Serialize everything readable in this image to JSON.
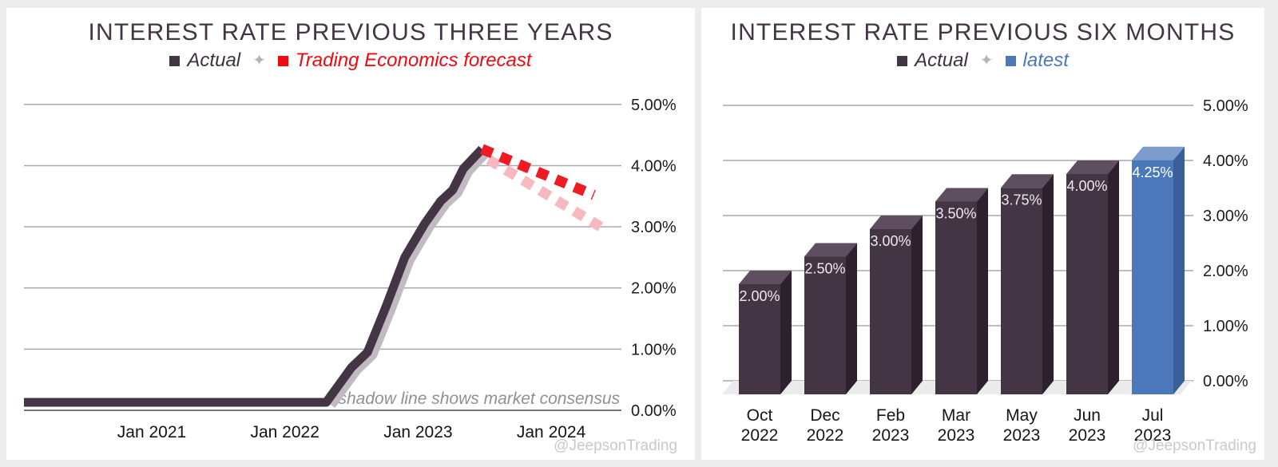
{
  "page": {
    "background_color": "#ededed"
  },
  "left_chart": {
    "title": "INTEREST RATE PREVIOUS THREE YEARS",
    "legend": {
      "actual": "Actual",
      "separator": "✦",
      "forecast": "Trading Economics forecast"
    },
    "annotation": "shadow line shows market consensus",
    "watermark": "@JeepsonTrading",
    "colors": {
      "actual": "#443544",
      "forecast": "#ee1b23",
      "forecast_text": "#f2090f",
      "consensus": "#f7b9bf",
      "shadow": "#c2bac1"
    }
  },
  "right_chart": {
    "title": "INTEREST RATE PREVIOUS SIX MONTHS",
    "legend": {
      "actual": "Actual",
      "separator": "✦",
      "latest": "latest"
    },
    "watermark": "@JeepsonTrading",
    "colors": {
      "actual_front": "#443544",
      "actual_top": "#5e4e5f",
      "actual_side": "#2c212d",
      "latest_front": "#4a78ba",
      "latest_top": "#7b9ccd",
      "latest_side": "#3a5f98"
    }
  },
  "chart_data": [
    {
      "type": "line",
      "title": "INTEREST RATE PREVIOUS THREE YEARS",
      "ylim": [
        0,
        5
      ],
      "y_tick_labels": [
        "0.00%",
        "1.00%",
        "2.00%",
        "3.00%",
        "4.00%",
        "5.00%"
      ],
      "x_tick_labels": [
        "Jan 2021",
        "Jan 2022",
        "Jan 2023",
        "Jan 2024"
      ],
      "x_tick_years": [
        2021,
        2022,
        2023,
        2024
      ],
      "grid": true,
      "legend_position": "top-center",
      "annotation": "shadow line shows market consensus",
      "series": [
        {
          "name": "Actual",
          "style": "solid",
          "color": "#443544",
          "points": [
            [
              2020.04,
              0.13
            ],
            [
              2022.31,
              0.13
            ],
            [
              2022.4,
              0.4
            ],
            [
              2022.5,
              0.7
            ],
            [
              2022.62,
              0.95
            ],
            [
              2022.76,
              1.7
            ],
            [
              2022.9,
              2.5
            ],
            [
              2023.05,
              3.05
            ],
            [
              2023.17,
              3.42
            ],
            [
              2023.26,
              3.6
            ],
            [
              2023.34,
              3.95
            ],
            [
              2023.48,
              4.27
            ]
          ]
        },
        {
          "name": "market consensus (shadow of Actual)",
          "style": "solid-shadow",
          "color": "#c2bac1",
          "derived_from": "Actual"
        },
        {
          "name": "market consensus",
          "style": "dashed",
          "color": "#f7b9bf",
          "points": [
            [
              2023.53,
              4.1
            ],
            [
              2024.37,
              3.0
            ]
          ]
        },
        {
          "name": "Trading Economics forecast",
          "style": "dashed",
          "color": "#ee1b23",
          "points": [
            [
              2023.48,
              4.27
            ],
            [
              2024.32,
              3.52
            ]
          ]
        }
      ]
    },
    {
      "type": "bar",
      "style_3d": true,
      "title": "INTEREST RATE PREVIOUS SIX MONTHS",
      "categories": [
        {
          "month": "Oct",
          "year": "2022"
        },
        {
          "month": "Dec",
          "year": "2022"
        },
        {
          "month": "Feb",
          "year": "2023"
        },
        {
          "month": "Mar",
          "year": "2023"
        },
        {
          "month": "May",
          "year": "2023"
        },
        {
          "month": "Jun",
          "year": "2023"
        },
        {
          "month": "Jul",
          "year": "2023"
        }
      ],
      "values": [
        2.0,
        2.5,
        3.0,
        3.5,
        3.75,
        4.0,
        4.25
      ],
      "bar_labels": [
        "2.00%",
        "2.50%",
        "3.00%",
        "3.50%",
        "3.75%",
        "4.00%",
        "4.25%"
      ],
      "highlight_index": 6,
      "series": [
        {
          "name": "Actual",
          "color": "#443544"
        },
        {
          "name": "latest",
          "color": "#4a78ba"
        }
      ],
      "ylim": [
        0,
        5
      ],
      "y_tick_labels": [
        "0.00%",
        "1.00%",
        "2.00%",
        "3.00%",
        "4.00%",
        "5.00%"
      ],
      "grid": true,
      "legend_position": "top-center"
    }
  ]
}
